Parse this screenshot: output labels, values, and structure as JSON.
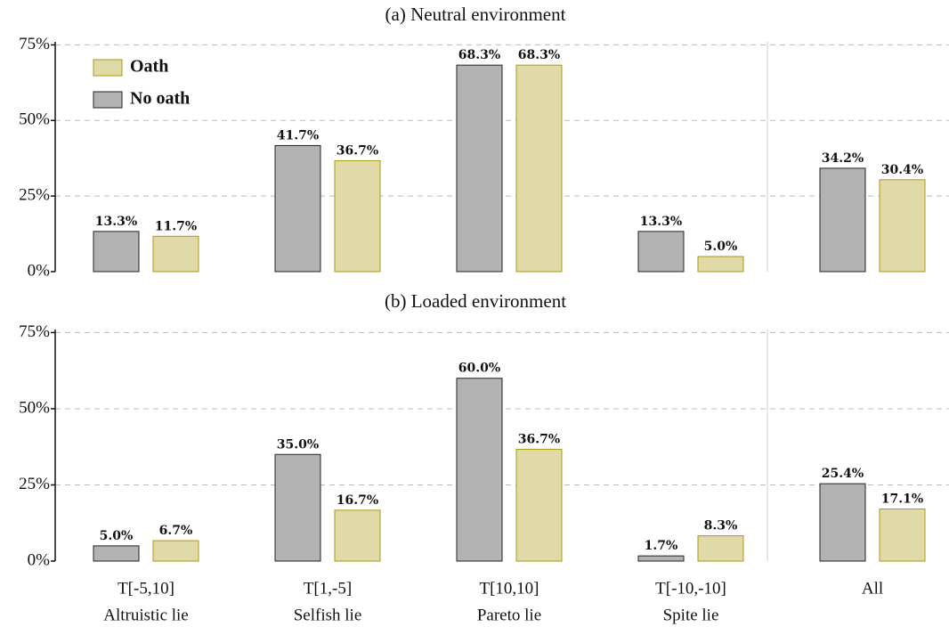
{
  "chart_data": [
    {
      "type": "bar",
      "title": "(a) Neutral environment",
      "categories": [
        null,
        null,
        null,
        null,
        null
      ],
      "series": [
        {
          "name": "No oath",
          "color": "#b3b3b3",
          "edge": "#222222",
          "values": [
            13.3,
            41.7,
            68.3,
            13.3,
            34.2
          ],
          "value_labels": [
            "13.3%",
            "41.7%",
            "68.3%",
            "13.3%",
            "34.2%"
          ]
        },
        {
          "name": "Oath",
          "color": "#e0d9a8",
          "edge": "#a89a10",
          "values": [
            11.7,
            36.7,
            68.3,
            5.0,
            30.4
          ],
          "value_labels": [
            "11.7%",
            "36.7%",
            "68.3%",
            "5.0%",
            "30.4%"
          ]
        }
      ],
      "ylim": [
        0,
        76
      ],
      "yticks": [
        {
          "value": 0,
          "label": "0%"
        },
        {
          "value": 25,
          "label": "25%"
        },
        {
          "value": 50,
          "label": "50%"
        },
        {
          "value": 75,
          "label": "75%"
        }
      ],
      "grid": true,
      "legend": "upper left"
    },
    {
      "type": "bar",
      "title": "(b) Loaded environment",
      "categories": [
        [
          "T[-5,10]",
          "Altruistic lie"
        ],
        [
          "T[1,-5]",
          "Selfish lie"
        ],
        [
          "T[10,10]",
          "Pareto lie"
        ],
        [
          "T[-10,-10]",
          "Spite lie"
        ],
        [
          "All"
        ]
      ],
      "series": [
        {
          "color": "#b3b3b3",
          "edge": "#222222",
          "values": [
            5.0,
            35.0,
            60.0,
            1.7,
            25.4
          ],
          "value_labels": [
            "5.0%",
            "35.0%",
            "60.0%",
            "1.7%",
            "25.4%"
          ]
        },
        {
          "color": "#e0d9a8",
          "edge": "#a89a10",
          "values": [
            6.7,
            16.7,
            36.7,
            8.3,
            17.1
          ],
          "value_labels": [
            "6.7%",
            "16.7%",
            "36.7%",
            "8.3%",
            "17.1%"
          ]
        }
      ],
      "ylim": [
        0,
        76
      ],
      "yticks": [
        {
          "value": 0,
          "label": "0%"
        },
        {
          "value": 25,
          "label": "25%"
        },
        {
          "value": 50,
          "label": "50%"
        },
        {
          "value": 75,
          "label": "75%"
        }
      ],
      "grid": true
    }
  ]
}
